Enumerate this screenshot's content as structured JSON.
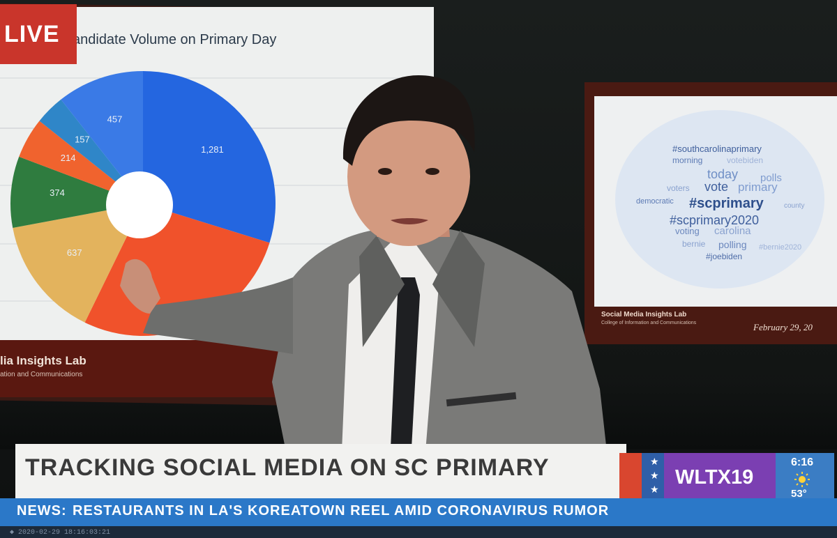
{
  "broadcast": {
    "live_label": "LIVE",
    "headline": "TRACKING SOCIAL MEDIA ON SC PRIMARY",
    "station_logo": "WLTX19",
    "time": "6:16",
    "temperature": "53°",
    "weather_icon": "sun-icon",
    "ticker_label": "NEWS:",
    "ticker_text": "RESTAURANTS IN LA'S KOREATOWN REEL AMID CORONAVIRUS RUMOR",
    "bottom_meta": "◆ 2020-02-29 18:16:03:21"
  },
  "main_screen": {
    "title": "andidate Volume on Primary Day",
    "footer_title": "lia Insights Lab",
    "footer_sub": "ation and Communications"
  },
  "chart_data": {
    "type": "pie",
    "title": "andidate Volume on Primary Day",
    "donut": true,
    "values": [
      1281,
      1180,
      637,
      374,
      214,
      157,
      457
    ],
    "data_labels": [
      "1,281",
      "",
      "637",
      "374",
      "214",
      "157",
      "457"
    ],
    "colors": [
      "#2466e0",
      "#f0522b",
      "#e3b35d",
      "#2f7c3f",
      "#f0632e",
      "#2f86c8",
      "#3a7ae6"
    ]
  },
  "side_screen": {
    "footer_title": "Social Media Insights Lab",
    "footer_sub": "College of Information and Communications",
    "date": "February 29, 20",
    "words": [
      "#southcarolinaprimary",
      "today",
      "vote",
      "primary",
      "#scprimary",
      "#scprimary2020",
      "polls",
      "voters",
      "morning",
      "democratic",
      "voting",
      "carolina",
      "polling",
      "bernie",
      "#joebiden",
      "votebiden",
      "county",
      "#bernie2020"
    ]
  },
  "colors": {
    "live_red": "#c9352b",
    "ticker_blue": "#2b78c8",
    "logo_purple": "#7b3fb2",
    "weather_blue": "#3b7dc4"
  }
}
